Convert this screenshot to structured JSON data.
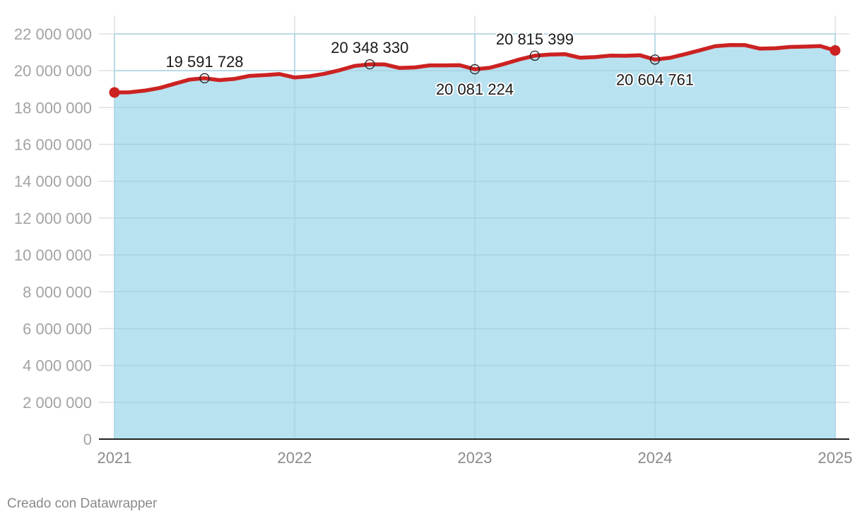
{
  "chart_data": {
    "type": "area",
    "title": "",
    "xlabel": "",
    "ylabel": "",
    "xlim": [
      2021,
      2025
    ],
    "ylim": [
      0,
      22000000
    ],
    "x_ticks": [
      2021,
      2022,
      2023,
      2024,
      2025
    ],
    "x_tick_labels": [
      "2021",
      "2022",
      "2023",
      "2024",
      "2025"
    ],
    "y_ticks": [
      0,
      2000000,
      4000000,
      6000000,
      8000000,
      10000000,
      12000000,
      14000000,
      16000000,
      18000000,
      20000000,
      22000000
    ],
    "y_tick_labels": [
      "0",
      "2 000 000",
      "4 000 000",
      "6 000 000",
      "8 000 000",
      "10 000 000",
      "12 000 000",
      "14 000 000",
      "16 000 000",
      "18 000 000",
      "20 000 000",
      "22 000 000"
    ],
    "grid": true,
    "colors": {
      "line": "#cc2222",
      "area": "#b9e2f0",
      "grid": "#e0e0e0"
    },
    "series": [
      {
        "x": [
          2021.0,
          2021.083,
          2021.167,
          2021.25,
          2021.333,
          2021.417,
          2021.5,
          2021.583,
          2021.667,
          2021.75,
          2021.833,
          2021.917,
          2022.0,
          2022.083,
          2022.167,
          2022.25,
          2022.333,
          2022.417,
          2022.5,
          2022.583,
          2022.667,
          2022.75,
          2022.833,
          2022.917,
          2023.0,
          2023.083,
          2023.167,
          2023.25,
          2023.333,
          2023.417,
          2023.5,
          2023.583,
          2023.667,
          2023.75,
          2023.833,
          2023.917,
          2024.0,
          2024.083,
          2024.167,
          2024.25,
          2024.333,
          2024.417,
          2024.5,
          2024.583,
          2024.667,
          2024.75,
          2024.833,
          2024.917,
          2025.0
        ],
        "values": [
          18820000,
          18830000,
          18920000,
          19060000,
          19290000,
          19520000,
          19591728,
          19490000,
          19560000,
          19720000,
          19760000,
          19820000,
          19630000,
          19700000,
          19840000,
          20030000,
          20260000,
          20348330,
          20340000,
          20150000,
          20180000,
          20290000,
          20290000,
          20300000,
          20081224,
          20160000,
          20380000,
          20620000,
          20815399,
          20880000,
          20900000,
          20710000,
          20740000,
          20820000,
          20810000,
          20840000,
          20604761,
          20700000,
          20900000,
          21110000,
          21330000,
          21400000,
          21390000,
          21200000,
          21220000,
          21290000,
          21310000,
          21340000,
          21100000
        ]
      }
    ],
    "annotations": [
      {
        "x": 2021.5,
        "y": 19591728,
        "label": "19 591 728",
        "position": "above"
      },
      {
        "x": 2022.417,
        "y": 20348330,
        "label": "20 348 330",
        "position": "above"
      },
      {
        "x": 2023.0,
        "y": 20081224,
        "label": "20 081 224",
        "position": "below"
      },
      {
        "x": 2023.333,
        "y": 20815399,
        "label": "20 815 399",
        "position": "above"
      },
      {
        "x": 2024.0,
        "y": 20604761,
        "label": "20 604 761",
        "position": "below"
      }
    ]
  },
  "footer": {
    "credit": "Creado con Datawrapper"
  }
}
